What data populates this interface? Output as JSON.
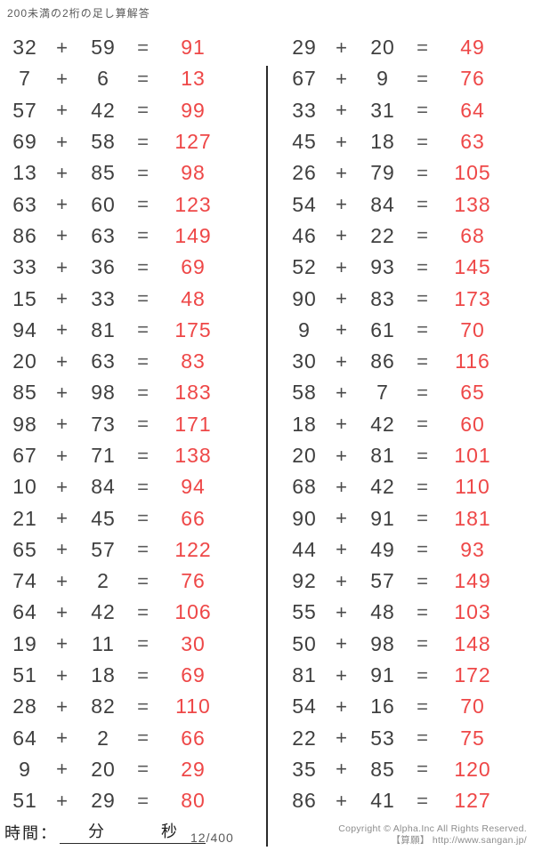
{
  "title": "200未満の2桁の足し算解答",
  "symbols": {
    "plus": "+",
    "equals": "="
  },
  "colors": {
    "answer": "#ee4747",
    "operand": "#3f3f3f"
  },
  "columns": [
    {
      "problems": [
        {
          "a": 32,
          "b": 59,
          "ans": 91
        },
        {
          "a": 7,
          "b": 6,
          "ans": 13
        },
        {
          "a": 57,
          "b": 42,
          "ans": 99
        },
        {
          "a": 69,
          "b": 58,
          "ans": 127
        },
        {
          "a": 13,
          "b": 85,
          "ans": 98
        },
        {
          "a": 63,
          "b": 60,
          "ans": 123
        },
        {
          "a": 86,
          "b": 63,
          "ans": 149
        },
        {
          "a": 33,
          "b": 36,
          "ans": 69
        },
        {
          "a": 15,
          "b": 33,
          "ans": 48
        },
        {
          "a": 94,
          "b": 81,
          "ans": 175
        },
        {
          "a": 20,
          "b": 63,
          "ans": 83
        },
        {
          "a": 85,
          "b": 98,
          "ans": 183
        },
        {
          "a": 98,
          "b": 73,
          "ans": 171
        },
        {
          "a": 67,
          "b": 71,
          "ans": 138
        },
        {
          "a": 10,
          "b": 84,
          "ans": 94
        },
        {
          "a": 21,
          "b": 45,
          "ans": 66
        },
        {
          "a": 65,
          "b": 57,
          "ans": 122
        },
        {
          "a": 74,
          "b": 2,
          "ans": 76
        },
        {
          "a": 64,
          "b": 42,
          "ans": 106
        },
        {
          "a": 19,
          "b": 11,
          "ans": 30
        },
        {
          "a": 51,
          "b": 18,
          "ans": 69
        },
        {
          "a": 28,
          "b": 82,
          "ans": 110
        },
        {
          "a": 64,
          "b": 2,
          "ans": 66
        },
        {
          "a": 9,
          "b": 20,
          "ans": 29
        },
        {
          "a": 51,
          "b": 29,
          "ans": 80
        }
      ]
    },
    {
      "problems": [
        {
          "a": 29,
          "b": 20,
          "ans": 49
        },
        {
          "a": 67,
          "b": 9,
          "ans": 76
        },
        {
          "a": 33,
          "b": 31,
          "ans": 64
        },
        {
          "a": 45,
          "b": 18,
          "ans": 63
        },
        {
          "a": 26,
          "b": 79,
          "ans": 105
        },
        {
          "a": 54,
          "b": 84,
          "ans": 138
        },
        {
          "a": 46,
          "b": 22,
          "ans": 68
        },
        {
          "a": 52,
          "b": 93,
          "ans": 145
        },
        {
          "a": 90,
          "b": 83,
          "ans": 173
        },
        {
          "a": 9,
          "b": 61,
          "ans": 70
        },
        {
          "a": 30,
          "b": 86,
          "ans": 116
        },
        {
          "a": 58,
          "b": 7,
          "ans": 65
        },
        {
          "a": 18,
          "b": 42,
          "ans": 60
        },
        {
          "a": 20,
          "b": 81,
          "ans": 101
        },
        {
          "a": 68,
          "b": 42,
          "ans": 110
        },
        {
          "a": 90,
          "b": 91,
          "ans": 181
        },
        {
          "a": 44,
          "b": 49,
          "ans": 93
        },
        {
          "a": 92,
          "b": 57,
          "ans": 149
        },
        {
          "a": 55,
          "b": 48,
          "ans": 103
        },
        {
          "a": 50,
          "b": 98,
          "ans": 148
        },
        {
          "a": 81,
          "b": 91,
          "ans": 172
        },
        {
          "a": 54,
          "b": 16,
          "ans": 70
        },
        {
          "a": 22,
          "b": 53,
          "ans": 75
        },
        {
          "a": 35,
          "b": 85,
          "ans": 120
        },
        {
          "a": 86,
          "b": 41,
          "ans": 127
        }
      ]
    }
  ],
  "footer": {
    "time_label": "時間：",
    "minutes_label": "分",
    "seconds_label": "秒",
    "page_number": "12/400",
    "copyright_line1": "Copyright © Alpha.Inc All Rights Reserved.",
    "copyright_line2": "【算願】 http://www.sangan.jp/"
  }
}
